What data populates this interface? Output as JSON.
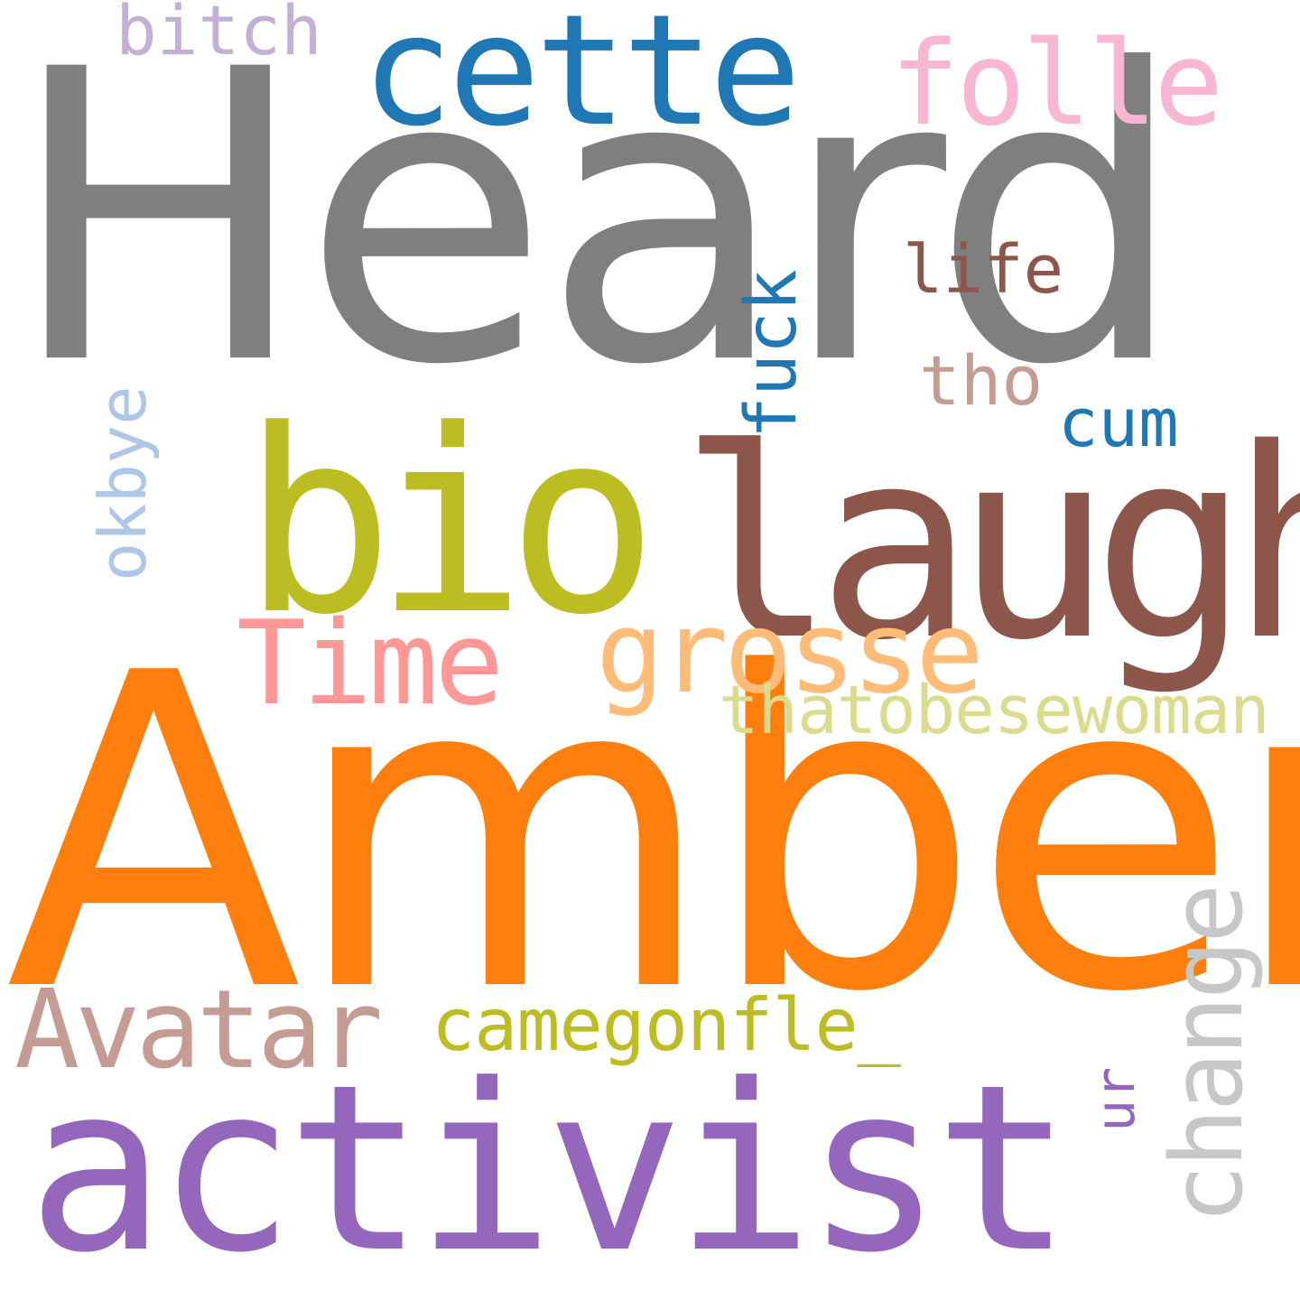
{
  "words": [
    {
      "key": "heard",
      "text": "Heard",
      "color": "#7f7f7f"
    },
    {
      "key": "amber",
      "text": "Amber",
      "color": "#ff7f0e"
    },
    {
      "key": "activist",
      "text": "activist",
      "color": "#9467bd"
    },
    {
      "key": "laugh",
      "text": "laugh",
      "color": "#8c564b"
    },
    {
      "key": "bio",
      "text": "bio",
      "color": "#bcbd22"
    },
    {
      "key": "cette",
      "text": "cette",
      "color": "#1f77b4"
    },
    {
      "key": "folle",
      "text": "folle",
      "color": "#f7b6d2"
    },
    {
      "key": "bitch",
      "text": "bitch",
      "color": "#c5b0d5"
    },
    {
      "key": "grosse",
      "text": "grosse",
      "color": "#ffbb78"
    },
    {
      "key": "time",
      "text": "Time",
      "color": "#ff9896"
    },
    {
      "key": "avatar",
      "text": "Avatar",
      "color": "#c49c94"
    },
    {
      "key": "change",
      "text": "change",
      "color": "#c7c7c7"
    },
    {
      "key": "thatobesewoman",
      "text": "thatobesewoman",
      "color": "#dbdb8d"
    },
    {
      "key": "camegonfle",
      "text": "camegonfle_",
      "color": "#bcbd22"
    },
    {
      "key": "okbye",
      "text": "okbye",
      "color": "#aec7e8"
    },
    {
      "key": "fuck",
      "text": "fuck",
      "color": "#1f77b4"
    },
    {
      "key": "life",
      "text": "life",
      "color": "#8c564b"
    },
    {
      "key": "tho",
      "text": "tho",
      "color": "#c49c94"
    },
    {
      "key": "cum",
      "text": "cum",
      "color": "#1f77b4"
    },
    {
      "key": "ur",
      "text": "ur",
      "color": "#9467bd"
    }
  ]
}
